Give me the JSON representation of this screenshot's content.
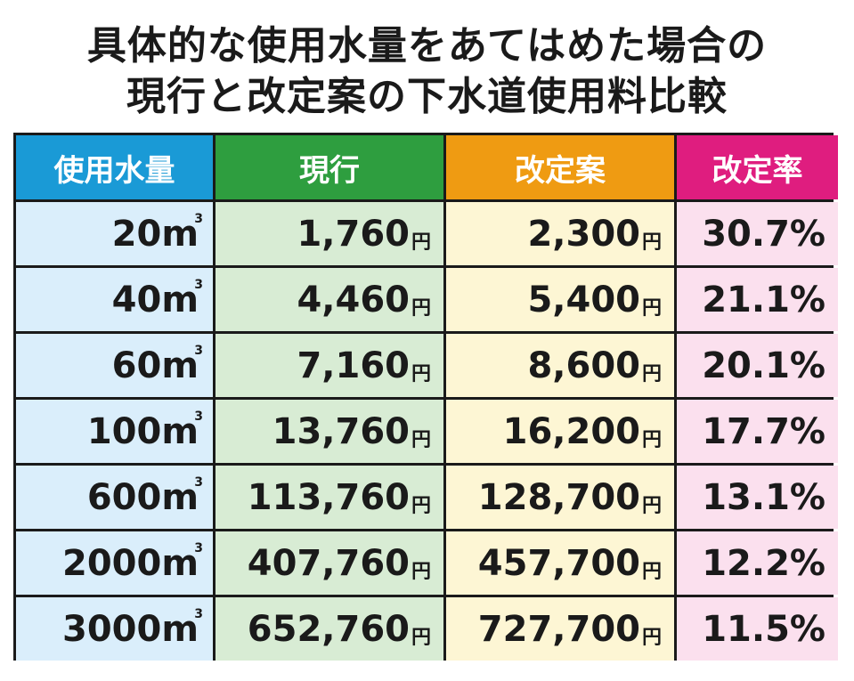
{
  "title_line1": "具体的な使用水量をあてはめた場合の",
  "title_line2": "現行と改定案の下水道使用料比較",
  "colors": {
    "header_volume": "#1a9ad6",
    "header_current": "#2e9e3f",
    "header_proposed": "#ef9b12",
    "header_rate": "#df1d7f",
    "cell_volume": "#daeefb",
    "cell_current": "#d8ecd4",
    "cell_proposed": "#fdf6d4",
    "cell_rate": "#fbe0ee"
  },
  "chart_data": {
    "type": "table",
    "title": "具体的な使用水量をあてはめた場合の現行と改定案の下水道使用料比較",
    "columns": [
      "使用水量",
      "現行",
      "改定案",
      "改定率"
    ],
    "units": {
      "volume": "m",
      "volume_sup": "3",
      "currency": "円"
    },
    "rows": [
      {
        "volume": "20",
        "current": "1,760",
        "proposed": "2,300",
        "rate": "30.7%"
      },
      {
        "volume": "40",
        "current": "4,460",
        "proposed": "5,400",
        "rate": "21.1%"
      },
      {
        "volume": "60",
        "current": "7,160",
        "proposed": "8,600",
        "rate": "20.1%"
      },
      {
        "volume": "100",
        "current": "13,760",
        "proposed": "16,200",
        "rate": "17.7%"
      },
      {
        "volume": "600",
        "current": "113,760",
        "proposed": "128,700",
        "rate": "13.1%"
      },
      {
        "volume": "2000",
        "current": "407,760",
        "proposed": "457,700",
        "rate": "12.2%"
      },
      {
        "volume": "3000",
        "current": "652,760",
        "proposed": "727,700",
        "rate": "11.5%"
      }
    ]
  }
}
